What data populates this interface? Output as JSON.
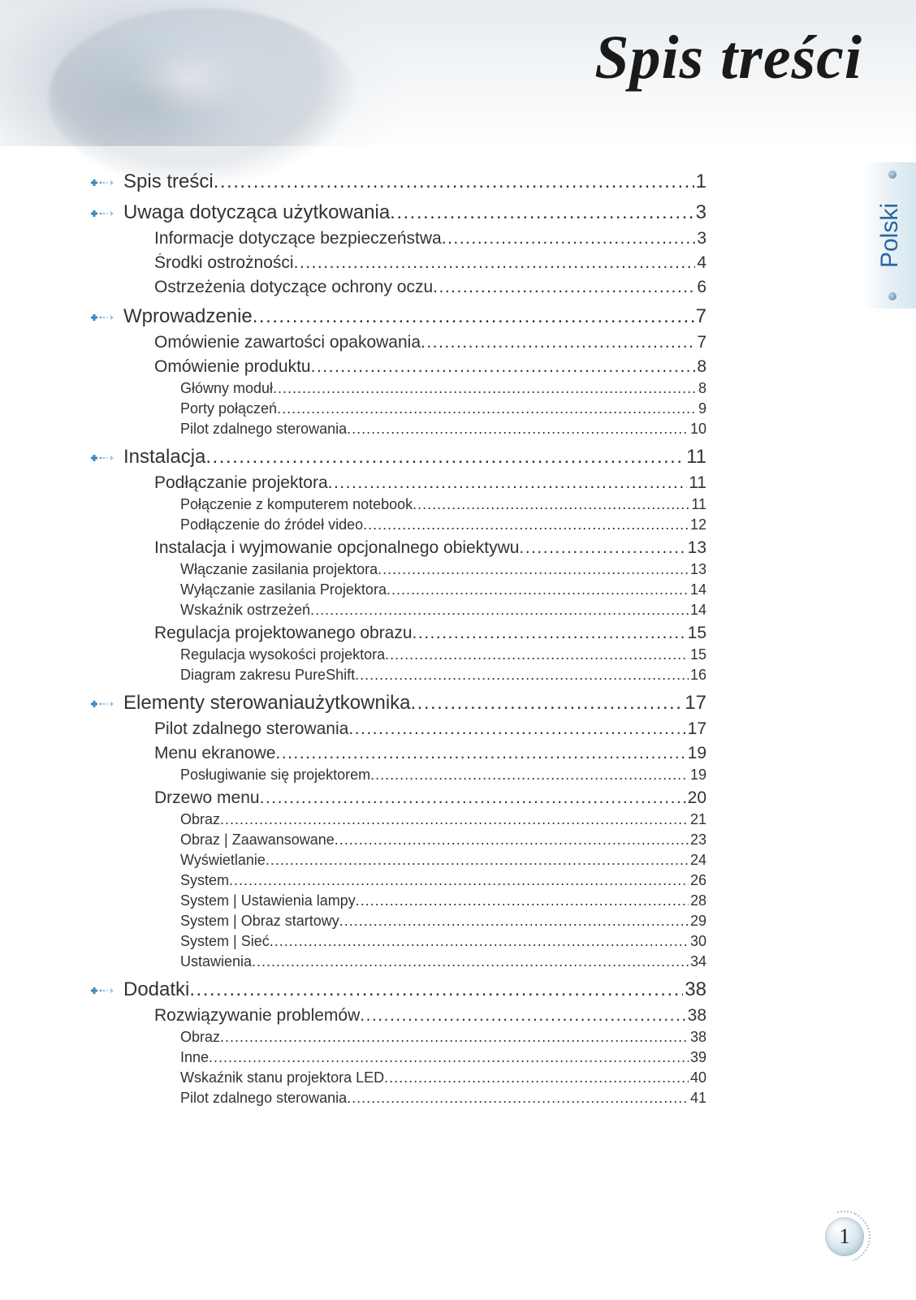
{
  "page_title": "Spis treści",
  "language_tab": "Polski",
  "page_number": "1",
  "colors": {
    "text": "#333333",
    "accent_blue": "#2a66a0",
    "tab_bg_edge": "#d5e6ee",
    "background": "#ffffff"
  },
  "typography": {
    "title_font": "cursive italic",
    "title_size_pt": 58,
    "body_font": "Arial",
    "lvl1_size_pt": 18,
    "lvl2_size_pt": 16,
    "lvl3_size_pt": 14
  },
  "toc": [
    {
      "level": 1,
      "label": "Spis treści",
      "page": "1"
    },
    {
      "level": 1,
      "label": "Uwaga dotycząca użytkowania",
      "page": "3"
    },
    {
      "level": 2,
      "label": "Informacje dotyczące bezpieczeństwa",
      "page": "3"
    },
    {
      "level": 2,
      "label": "Środki ostrożności",
      "page": "4"
    },
    {
      "level": 2,
      "label": "Ostrzeżenia dotyczące ochrony oczu",
      "page": "6"
    },
    {
      "level": 1,
      "label": "Wprowadzenie",
      "page": "7"
    },
    {
      "level": 2,
      "label": "Omówienie zawartości opakowania",
      "page": "7"
    },
    {
      "level": 2,
      "label": "Omówienie produktu",
      "page": "8"
    },
    {
      "level": 3,
      "label": "Główny moduł",
      "page": "8"
    },
    {
      "level": 3,
      "label": "Porty połączeń",
      "page": "9"
    },
    {
      "level": 3,
      "label": "Pilot zdalnego sterowania",
      "page": "10"
    },
    {
      "level": 1,
      "label": "Instalacja",
      "page": "11"
    },
    {
      "level": 2,
      "label": "Podłączanie projektora",
      "page": "11"
    },
    {
      "level": 3,
      "label": "Połączenie z komputerem notebook",
      "page": "11"
    },
    {
      "level": 3,
      "label": "Podłączenie do źródeł video",
      "page": "12"
    },
    {
      "level": 2,
      "label": "Instalacja i wyjmowanie opcjonalnego obiektywu",
      "page": "13"
    },
    {
      "level": 3,
      "label": "Włączanie zasilania projektora",
      "page": "13"
    },
    {
      "level": 3,
      "label": "Wyłączanie  zasilania Projektora",
      "page": "14"
    },
    {
      "level": 3,
      "label": "Wskaźnik ostrzeżeń",
      "page": "14"
    },
    {
      "level": 2,
      "label": "Regulacja projektowanego obrazu",
      "page": "15"
    },
    {
      "level": 3,
      "label": "Regulacja wysokości projektora",
      "page": "15"
    },
    {
      "level": 3,
      "label": "Diagram zakresu PureShift",
      "page": "16"
    },
    {
      "level": 1,
      "label": "Elementy sterowaniaużytkownika",
      "page": "17"
    },
    {
      "level": 2,
      "label": "Pilot zdalnego sterowania",
      "page": "17"
    },
    {
      "level": 2,
      "label": "Menu ekranowe",
      "page": "19"
    },
    {
      "level": 3,
      "label": "Posługiwanie się projektorem",
      "page": "19"
    },
    {
      "level": 2,
      "label": "Drzewo menu",
      "page": "20"
    },
    {
      "level": 3,
      "label": "Obraz",
      "page": "21"
    },
    {
      "level": 3,
      "label": "Obraz | Zaawansowane",
      "page": "23"
    },
    {
      "level": 3,
      "label": "Wyświetlanie",
      "page": "24"
    },
    {
      "level": 3,
      "label": "System",
      "page": "26"
    },
    {
      "level": 3,
      "label": "System | Ustawienia lampy",
      "page": "28"
    },
    {
      "level": 3,
      "label": "System | Obraz startowy",
      "page": "29"
    },
    {
      "level": 3,
      "label": "System | Sieć",
      "page": "30"
    },
    {
      "level": 3,
      "label": "Ustawienia",
      "page": "34"
    },
    {
      "level": 1,
      "label": "Dodatki",
      "page": "38"
    },
    {
      "level": 2,
      "label": "Rozwiązywanie problemów",
      "page": "38"
    },
    {
      "level": 3,
      "label": "Obraz",
      "page": "38"
    },
    {
      "level": 3,
      "label": "Inne",
      "page": "39"
    },
    {
      "level": 3,
      "label": "Wskaźnik stanu projektora LED",
      "page": "40"
    },
    {
      "level": 3,
      "label": "Pilot zdalnego sterowania",
      "page": "41"
    }
  ]
}
